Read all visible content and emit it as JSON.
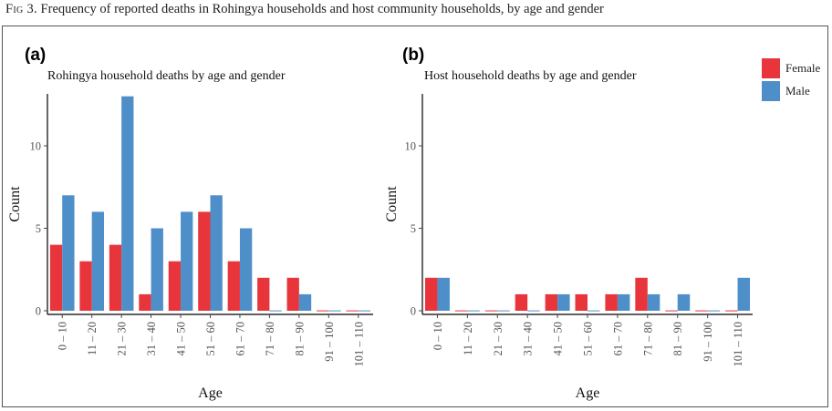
{
  "caption": {
    "fig_label": "Fig 3.",
    "text": "Frequency of reported deaths in Rohingya households and host community households, by age and gender"
  },
  "legend": [
    {
      "name": "Female",
      "color": "#e8353b"
    },
    {
      "name": "Male",
      "color": "#4f8fc9"
    }
  ],
  "chart_data": [
    {
      "type": "bar",
      "panel_label": "(a)",
      "title": "Rohingya household deaths by age and gender",
      "xlabel": "Age",
      "ylabel": "Count",
      "ylim": [
        0,
        13.5
      ],
      "yticks": [
        0,
        5,
        10
      ],
      "categories": [
        "0 – 10",
        "11 – 20",
        "21 – 30",
        "31 – 40",
        "41 – 50",
        "51 – 60",
        "61 – 70",
        "71 – 80",
        "81 – 90",
        "91 – 100",
        "101 – 110"
      ],
      "series": [
        {
          "name": "Female",
          "values": [
            4,
            3,
            4,
            1,
            3,
            6,
            3,
            2,
            2,
            0,
            0
          ]
        },
        {
          "name": "Male",
          "values": [
            7,
            6,
            13,
            5,
            6,
            7,
            5,
            0,
            1,
            0,
            0
          ]
        }
      ],
      "grid": false,
      "legend_position": "right"
    },
    {
      "type": "bar",
      "panel_label": "(b)",
      "title": "Host household deaths by age and gender",
      "xlabel": "Age",
      "ylabel": "Count",
      "ylim": [
        0,
        13.5
      ],
      "yticks": [
        0,
        5,
        10
      ],
      "categories": [
        "0 – 10",
        "11 – 20",
        "21 – 30",
        "31 – 40",
        "41 – 50",
        "51 – 60",
        "61 – 70",
        "71 – 80",
        "81 – 90",
        "91 – 100",
        "101 – 110"
      ],
      "series": [
        {
          "name": "Female",
          "values": [
            2,
            0,
            0,
            1,
            1,
            1,
            1,
            2,
            0,
            0,
            0
          ]
        },
        {
          "name": "Male",
          "values": [
            2,
            0,
            0,
            0,
            1,
            0,
            1,
            1,
            1,
            0,
            2
          ]
        }
      ],
      "grid": false,
      "legend_position": "right"
    }
  ]
}
